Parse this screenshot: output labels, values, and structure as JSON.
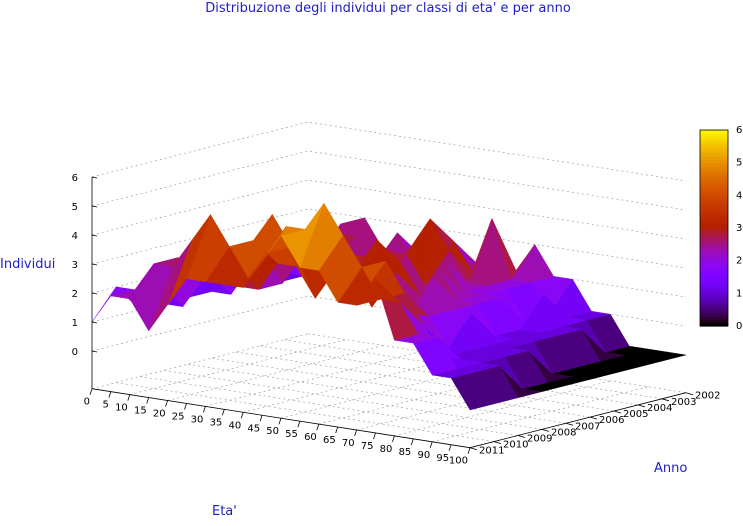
{
  "chart_data": {
    "type": "surface3d",
    "title": "Distribuzione degli individui per classi di eta' e per anno",
    "xlabel": "Eta'",
    "ylabel": "Anno",
    "zlabel": "Individui",
    "x_ticks": [
      "0",
      "5",
      "10",
      "15",
      "20",
      "25",
      "30",
      "35",
      "40",
      "45",
      "50",
      "55",
      "60",
      "65",
      "70",
      "75",
      "80",
      "85",
      "90",
      "95",
      "100"
    ],
    "y_ticks": [
      "2002",
      "2003",
      "2004",
      "2005",
      "2006",
      "2007",
      "2008",
      "2009",
      "2010",
      "2011"
    ],
    "z_ticks": [
      "0",
      "1",
      "2",
      "3",
      "4",
      "5",
      "6"
    ],
    "colorbar_ticks": [
      "0",
      "1",
      "2",
      "3",
      "4",
      "5",
      "6"
    ],
    "zlim": [
      0,
      6
    ],
    "colors": {
      "low": "#000000",
      "mid": "#8a00ff",
      "high": "#ffff00"
    },
    "years": [
      2011,
      2010,
      2009,
      2008,
      2007,
      2006,
      2005,
      2004,
      2003,
      2002
    ],
    "ages": [
      0,
      5,
      10,
      15,
      20,
      25,
      30,
      35,
      40,
      45,
      50,
      55,
      60,
      65,
      70,
      75,
      80,
      85,
      90,
      95,
      100
    ],
    "z": [
      [
        1,
        2,
        2,
        1,
        2,
        3,
        3,
        3,
        3,
        4,
        5,
        4,
        4,
        3,
        3,
        4,
        2,
        2,
        1,
        1,
        0
      ],
      [
        2,
        2,
        3,
        3,
        4,
        5,
        4,
        3,
        4,
        5,
        5,
        6,
        5,
        4,
        3,
        3,
        2,
        2,
        1,
        1,
        0
      ],
      [
        1,
        2,
        3,
        3,
        4,
        3,
        4,
        5,
        4,
        4,
        3,
        4,
        3,
        4,
        3,
        2,
        1,
        1,
        1,
        1,
        0
      ],
      [
        1,
        1,
        2,
        3,
        2,
        2,
        3,
        3,
        2,
        3,
        3,
        2,
        3,
        2,
        2,
        1,
        1,
        1,
        1,
        0,
        0
      ],
      [
        1,
        2,
        2,
        2,
        3,
        2,
        3,
        4,
        3,
        3,
        4,
        3,
        2,
        3,
        2,
        2,
        1,
        1,
        1,
        0,
        0
      ],
      [
        1,
        1,
        2,
        2,
        2,
        3,
        2,
        3,
        3,
        2,
        3,
        2,
        3,
        2,
        2,
        1,
        1,
        1,
        0,
        0,
        0
      ],
      [
        1,
        2,
        3,
        2,
        3,
        2,
        3,
        2,
        3,
        3,
        2,
        3,
        2,
        2,
        2,
        1,
        1,
        1,
        0,
        0,
        0
      ],
      [
        1,
        1,
        2,
        2,
        3,
        3,
        2,
        3,
        2,
        4,
        3,
        2,
        2,
        2,
        1,
        2,
        1,
        1,
        0,
        0,
        0
      ],
      [
        1,
        1,
        2,
        3,
        2,
        2,
        3,
        2,
        2,
        3,
        2,
        4,
        2,
        2,
        1,
        1,
        1,
        0,
        0,
        0,
        0
      ],
      [
        1,
        2,
        2,
        3,
        2,
        2,
        2,
        3,
        2,
        2,
        3,
        2,
        3,
        2,
        2,
        1,
        1,
        0,
        0,
        0,
        0
      ]
    ]
  }
}
